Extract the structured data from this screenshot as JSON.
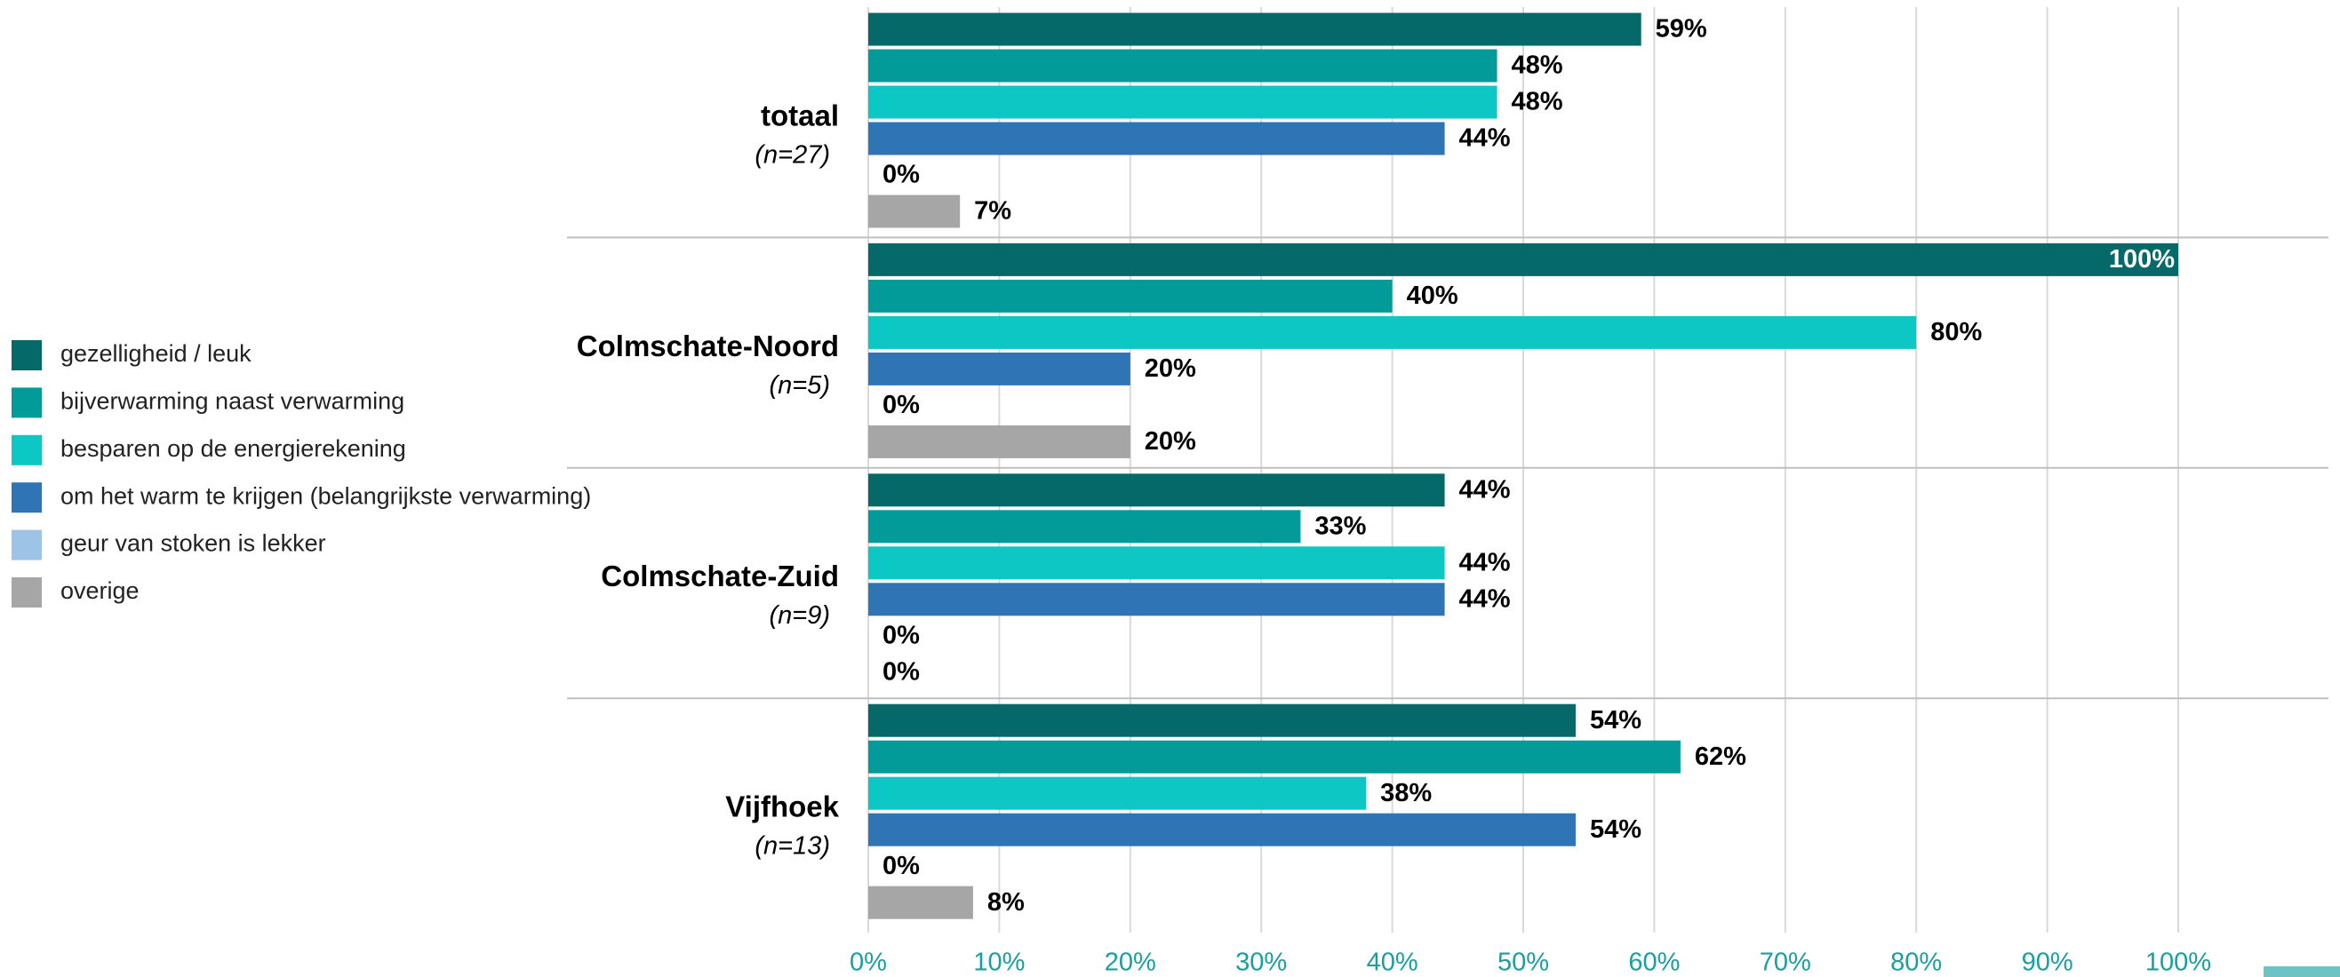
{
  "chart_data": {
    "type": "bar",
    "categories": [
      "totaal",
      "Colmschate-Noord",
      "Colmschate-Zuid",
      "Vijfhoek"
    ],
    "category_notes": [
      "(n=27)",
      "(n=5)",
      "(n=9)",
      "(n=13)"
    ],
    "series": [
      {
        "name": "gezelligheid / leuk",
        "color": "#05696a",
        "values": [
          59,
          100,
          44,
          54
        ],
        "value_labels": [
          "59%",
          "100%",
          "44%",
          "54%"
        ]
      },
      {
        "name": "bijverwarming naast verwarming",
        "color": "#039a9a",
        "values": [
          48,
          40,
          33,
          62
        ],
        "value_labels": [
          "48%",
          "40%",
          "33%",
          "62%"
        ]
      },
      {
        "name": "besparen op de energierekening",
        "color": "#0cc7c4",
        "values": [
          48,
          80,
          44,
          38
        ],
        "value_labels": [
          "48%",
          "80%",
          "44%",
          "38%"
        ]
      },
      {
        "name": "om het warm te krijgen (belangrijkste verwarming)",
        "color": "#2f75b5",
        "values": [
          44,
          20,
          44,
          54
        ],
        "value_labels": [
          "44%",
          "20%",
          "44%",
          "54%"
        ]
      },
      {
        "name": "geur van stoken is lekker",
        "color": "#9dc3e6",
        "values": [
          0,
          0,
          0,
          0
        ],
        "value_labels": [
          "0%",
          "0%",
          "0%",
          "0%"
        ]
      },
      {
        "name": "overige",
        "color": "#a6a6a6",
        "values": [
          7,
          20,
          0,
          8
        ],
        "value_labels": [
          "7%",
          "20%",
          "0%",
          "8%"
        ]
      }
    ],
    "xlim": [
      0,
      100
    ],
    "xticks": [
      {
        "value": 0,
        "label": "0%"
      },
      {
        "value": 10,
        "label": "10%"
      },
      {
        "value": 20,
        "label": "20%"
      },
      {
        "value": 30,
        "label": "30%"
      },
      {
        "value": 40,
        "label": "40%"
      },
      {
        "value": 50,
        "label": "50%"
      },
      {
        "value": 60,
        "label": "60%"
      },
      {
        "value": 70,
        "label": "70%"
      },
      {
        "value": 80,
        "label": "80%"
      },
      {
        "value": 90,
        "label": "90%"
      },
      {
        "value": 100,
        "label": "100%"
      }
    ],
    "grid": true
  }
}
